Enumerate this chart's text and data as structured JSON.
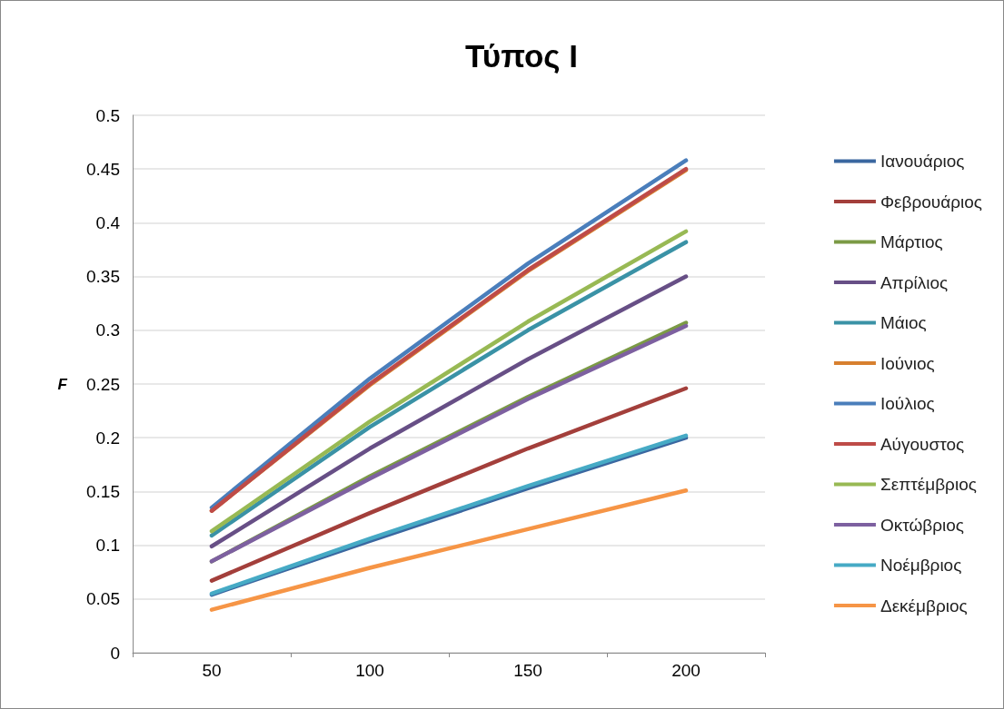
{
  "chart_data": {
    "type": "line",
    "title": "Τύπος Ι",
    "ylabel": "F",
    "categories": [
      "50",
      "100",
      "150",
      "200"
    ],
    "series": [
      {
        "name": "Ιανουάριος",
        "color": "#3a67a0",
        "values": [
          0.054,
          0.104,
          0.153,
          0.2
        ]
      },
      {
        "name": "Φεβρουάριος",
        "color": "#a33f3b",
        "values": [
          0.067,
          0.13,
          0.19,
          0.246
        ]
      },
      {
        "name": "Μάρτιος",
        "color": "#7b9a45",
        "values": [
          0.085,
          0.164,
          0.238,
          0.307
        ]
      },
      {
        "name": "Απρίλιος",
        "color": "#674f86",
        "values": [
          0.099,
          0.19,
          0.273,
          0.35
        ]
      },
      {
        "name": "Μάιος",
        "color": "#3a92a6",
        "values": [
          0.109,
          0.21,
          0.3,
          0.382
        ]
      },
      {
        "name": "Ιούνιος",
        "color": "#d7802f",
        "values": [
          0.132,
          0.249,
          0.355,
          0.449
        ]
      },
      {
        "name": "Ιούλιος",
        "color": "#4a7ebb",
        "values": [
          0.135,
          0.255,
          0.362,
          0.458
        ]
      },
      {
        "name": "Αύγουστος",
        "color": "#be4b48",
        "values": [
          0.132,
          0.25,
          0.356,
          0.45
        ]
      },
      {
        "name": "Σεπτέμβριος",
        "color": "#98b954",
        "values": [
          0.113,
          0.215,
          0.308,
          0.392
        ]
      },
      {
        "name": "Οκτώβριος",
        "color": "#7d60a0",
        "values": [
          0.085,
          0.162,
          0.236,
          0.304
        ]
      },
      {
        "name": "Νοέμβριος",
        "color": "#46aac5",
        "values": [
          0.055,
          0.106,
          0.155,
          0.202
        ]
      },
      {
        "name": "Δεκέμβριος",
        "color": "#f69546",
        "values": [
          0.04,
          0.079,
          0.115,
          0.151
        ]
      }
    ],
    "ylim": [
      0,
      0.5
    ],
    "yticks": [
      0,
      0.05,
      0.1,
      0.15,
      0.2,
      0.25,
      0.3,
      0.35,
      0.4,
      0.45,
      0.5
    ],
    "grid": "y",
    "legend": "right",
    "marker": "none",
    "line_style": "solid"
  }
}
